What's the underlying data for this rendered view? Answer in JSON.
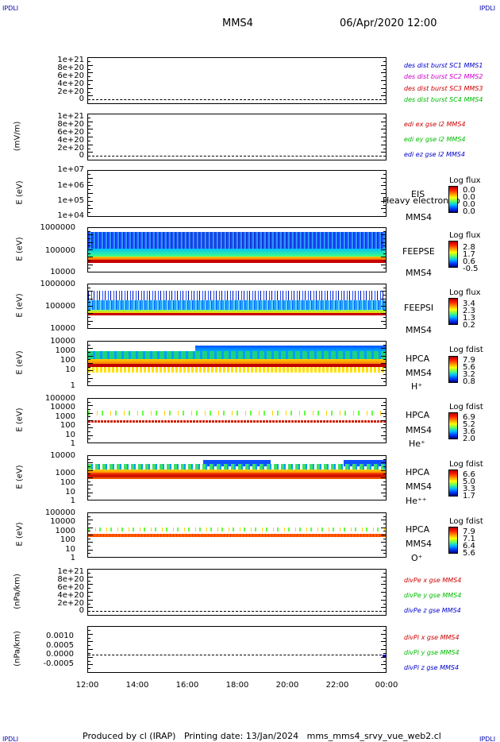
{
  "header": {
    "corner_label": "IPDLI",
    "spacecraft": "MMS4",
    "datetime": "06/Apr/2020 12:00"
  },
  "footer": {
    "text": "Produced by cl (IRAP)   Printing date: 13/Jan/2024   mms_mms4_srvy_vue_web2.cl"
  },
  "x_axis": {
    "ticks": [
      "12:00",
      "14:00",
      "16:00",
      "18:00",
      "20:00",
      "22:00",
      "00:00"
    ]
  },
  "colors": {
    "black": "#000000",
    "blue": "#0000cc",
    "magenta": "#cc00cc",
    "red": "#cc0000",
    "green": "#00bb00"
  },
  "panels": [
    {
      "id": "des",
      "ylabel": "",
      "yticks": [
        "1e+21",
        "8e+20",
        "6e+20",
        "4e+20",
        "2e+20",
        "0"
      ],
      "legend": [
        {
          "text": "des dist burst SC1 MMS1",
          "color": "#0000cc"
        },
        {
          "text": "des dist burst SC2 MMS2",
          "color": "#cc00cc"
        },
        {
          "text": "des dist burst SC3 MMS3",
          "color": "#cc0000"
        },
        {
          "text": "des dist burst SC4 MMS4",
          "color": "#00bb00"
        }
      ]
    },
    {
      "id": "edi",
      "ylabel": "(mV/m)",
      "yticks": [
        "1e+21",
        "8e+20",
        "6e+20",
        "4e+20",
        "2e+20",
        "0"
      ],
      "legend": [
        {
          "text": "edi ex gse l2 MMS4",
          "color": "#cc0000"
        },
        {
          "text": "edi ey gse l2 MMS4",
          "color": "#00bb00"
        },
        {
          "text": "edi ez gse l2 MMS4",
          "color": "#0000cc"
        }
      ]
    },
    {
      "id": "eis",
      "ylabel": "E (eV)",
      "yticks": [
        "1e+07",
        "1e+06",
        "1e+05",
        "1e+04"
      ],
      "instrument": [
        "EIS",
        "MMS4"
      ],
      "overlay": "Heavy electron to",
      "cbar_title": "Log flux",
      "cbar_values": [
        "0.0",
        "0.0",
        "0.0",
        "0.0"
      ]
    },
    {
      "id": "feepse",
      "ylabel": "E (eV)",
      "yticks": [
        "1000000",
        "100000",
        "10000"
      ],
      "instrument": [
        "FEEPSE",
        "MMS4"
      ],
      "cbar_title": "Log flux",
      "cbar_values": [
        "2.8",
        "1.7",
        "0.6",
        "-0.5"
      ]
    },
    {
      "id": "feepsi",
      "ylabel": "E (eV)",
      "yticks": [
        "1000000",
        "100000",
        "10000"
      ],
      "instrument": [
        "FEEPSI",
        "MMS4"
      ],
      "cbar_title": "Log flux",
      "cbar_values": [
        "3.4",
        "2.3",
        "1.3",
        "0.2"
      ]
    },
    {
      "id": "hpca_h",
      "ylabel": "E (eV)",
      "yticks": [
        "10000",
        "1000",
        "100",
        "10",
        "1"
      ],
      "instrument": [
        "HPCA",
        "MMS4",
        "H⁺"
      ],
      "cbar_title": "Log fdist",
      "cbar_values": [
        "7.9",
        "5.6",
        "3.2",
        "0.8"
      ]
    },
    {
      "id": "hpca_he",
      "ylabel": "E (eV)",
      "yticks": [
        "100000",
        "10000",
        "1000",
        "100",
        "10",
        "1"
      ],
      "instrument": [
        "HPCA",
        "MMS4",
        "He⁺"
      ],
      "cbar_title": "Log fdist",
      "cbar_values": [
        "6.9",
        "5.2",
        "3.6",
        "2.0"
      ]
    },
    {
      "id": "hpca_hepp",
      "ylabel": "E (eV)",
      "yticks": [
        "10000",
        "1000",
        "100",
        "10",
        "1"
      ],
      "instrument": [
        "HPCA",
        "MMS4",
        "He⁺⁺"
      ],
      "cbar_title": "Log fdist",
      "cbar_values": [
        "6.6",
        "5.0",
        "3.3",
        "1.7"
      ]
    },
    {
      "id": "hpca_o",
      "ylabel": "E (eV)",
      "yticks": [
        "100000",
        "10000",
        "1000",
        "100",
        "10",
        "1"
      ],
      "instrument": [
        "HPCA",
        "MMS4",
        "O⁺"
      ],
      "cbar_title": "Log fdist",
      "cbar_values": [
        "7.9",
        "7.1",
        "6.4",
        "5.6"
      ]
    },
    {
      "id": "divpe",
      "ylabel": "(nPa/km)",
      "yticks": [
        "1e+21",
        "8e+20",
        "6e+20",
        "4e+20",
        "2e+20",
        "0"
      ],
      "legend": [
        {
          "text": "divPe x gse MMS4",
          "color": "#cc0000"
        },
        {
          "text": "divPe y gse MMS4",
          "color": "#00bb00"
        },
        {
          "text": "divPe z gse MMS4",
          "color": "#0000cc"
        }
      ]
    },
    {
      "id": "divpi",
      "ylabel": "(nPa/km)",
      "yticks": [
        "0.0010",
        "0.0005",
        "0.0000",
        "-0.0005"
      ],
      "legend": [
        {
          "text": "divPi x gse MMS4",
          "color": "#cc0000"
        },
        {
          "text": "divPi y gse MMS4",
          "color": "#00bb00"
        },
        {
          "text": "divPi z gse MMS4",
          "color": "#0000cc"
        }
      ]
    }
  ],
  "chart_data": {
    "type": "heatmap",
    "x_range": [
      "12:00",
      "00:00"
    ],
    "xticks": [
      "12:00",
      "14:00",
      "16:00",
      "18:00",
      "20:00",
      "22:00",
      "00:00"
    ],
    "series": [
      {
        "name": "divPi x gse MMS4",
        "values": [
          0.0,
          0.0
        ]
      },
      {
        "name": "divPi y gse MMS4",
        "values": [
          0.0,
          0.0
        ]
      },
      {
        "name": "divPi z gse MMS4",
        "values": [
          0.0,
          0.0
        ]
      }
    ],
    "ylim_divpi": [
      -0.0008,
      0.0013
    ]
  }
}
